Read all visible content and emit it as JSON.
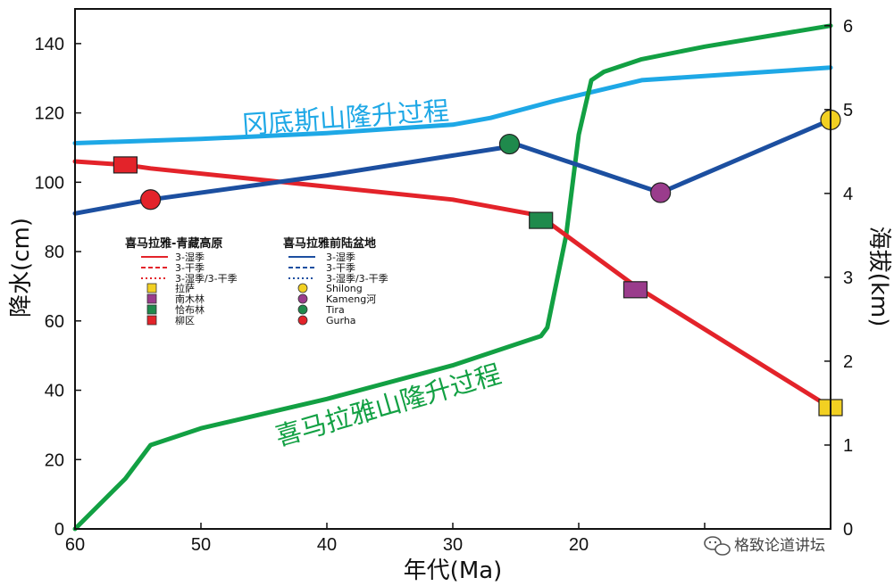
{
  "chart_data": {
    "type": "line",
    "xlabel": "年代(Ma)",
    "ylabel": "降水(cm)",
    "y2label": "海拔(km)",
    "xlim": [
      60,
      0
    ],
    "ylim": [
      0,
      150
    ],
    "y2lim": [
      0,
      6.2
    ],
    "x_ticks": [
      60,
      50,
      40,
      30,
      20,
      10,
      0
    ],
    "x_tick_labels": [
      "60",
      "50",
      "40",
      "30",
      "20",
      "",
      ""
    ],
    "y_ticks": [
      0,
      20,
      40,
      60,
      80,
      100,
      120,
      140
    ],
    "y2_ticks": [
      0,
      1,
      2,
      3,
      4,
      5,
      6
    ],
    "series": [
      {
        "name": "冈底斯山隆升过程",
        "axis": "y2",
        "color": "#1ea8e6",
        "x": [
          60,
          50,
          40,
          30,
          27,
          22,
          15,
          0
        ],
        "y": [
          4.6,
          4.65,
          4.72,
          4.82,
          4.9,
          5.1,
          5.35,
          5.5
        ]
      },
      {
        "name": "喜马拉雅山隆升过程",
        "axis": "y2",
        "color": "#12a043",
        "x": [
          60,
          56,
          54,
          50,
          40,
          30,
          23,
          22.5,
          21,
          20,
          19,
          18,
          15,
          10,
          0
        ],
        "y": [
          0,
          0.6,
          1.0,
          1.2,
          1.55,
          1.95,
          2.3,
          2.4,
          3.5,
          4.7,
          5.35,
          5.45,
          5.6,
          5.75,
          6.0
        ]
      },
      {
        "name": "喜马拉雅-青藏高原",
        "axis": "y",
        "color": "#e3232a",
        "x": [
          60,
          56,
          54,
          30,
          24,
          23,
          15.5,
          0
        ],
        "y": [
          106,
          105,
          104,
          95,
          91,
          90,
          70,
          35
        ]
      },
      {
        "name": "喜马拉雅前陆盆地",
        "axis": "y",
        "color": "#1c4fa0",
        "x": [
          60,
          54,
          40,
          26,
          25,
          13.5,
          0
        ],
        "y": [
          91,
          95,
          102,
          110,
          111,
          97,
          118
        ]
      }
    ],
    "markers": [
      {
        "site": "柳区",
        "shape": "square",
        "color": "#e3232a",
        "x": 56,
        "y": 105
      },
      {
        "site": "恰布林",
        "shape": "square",
        "color": "#1f8a4c",
        "x": 23,
        "y": 89
      },
      {
        "site": "南木林",
        "shape": "square",
        "color": "#9a3c8c",
        "x": 15.5,
        "y": 69
      },
      {
        "site": "拉萨",
        "shape": "square",
        "color": "#f2d022",
        "x": 0,
        "y": 35
      },
      {
        "site": "Gurha",
        "shape": "circle",
        "color": "#e3232a",
        "x": 54,
        "y": 95
      },
      {
        "site": "Tira",
        "shape": "circle",
        "color": "#1f8a4c",
        "x": 25.5,
        "y": 111
      },
      {
        "site": "Kameng河",
        "shape": "circle",
        "color": "#9a3c8c",
        "x": 13.5,
        "y": 97
      },
      {
        "site": "Shilong",
        "shape": "circle",
        "color": "#f2d022",
        "x": 0,
        "y": 118
      }
    ],
    "annotations": [
      {
        "text": "冈底斯山隆升过程",
        "color": "#1ea8e6"
      },
      {
        "text": "喜马拉雅山隆升过程",
        "color": "#12a043"
      }
    ],
    "legend": {
      "placement": "center-left",
      "groups": [
        {
          "title": "喜马拉雅-青藏高原",
          "line_color": "#e3232a",
          "lines": [
            "3-湿季",
            "3-干季",
            "3-湿季/3-干季"
          ],
          "sites": [
            {
              "label": "拉萨",
              "color": "#f2d022"
            },
            {
              "label": "南木林",
              "color": "#9a3c8c"
            },
            {
              "label": "恰布林",
              "color": "#1f8a4c"
            },
            {
              "label": "柳区",
              "color": "#e3232a"
            }
          ]
        },
        {
          "title": "喜马拉雅前陆盆地",
          "line_color": "#1c4fa0",
          "lines": [
            "3-湿季",
            "3-干季",
            "3-湿季/3-干季"
          ],
          "sites": [
            {
              "label": "Shilong",
              "color": "#f2d022"
            },
            {
              "label": "Kameng河",
              "color": "#9a3c8c"
            },
            {
              "label": "Tira",
              "color": "#1f8a4c"
            },
            {
              "label": "Gurha",
              "color": "#e3232a"
            }
          ]
        }
      ]
    }
  },
  "watermark": {
    "text": "格致论道讲坛",
    "icon": "wechat-icon"
  }
}
